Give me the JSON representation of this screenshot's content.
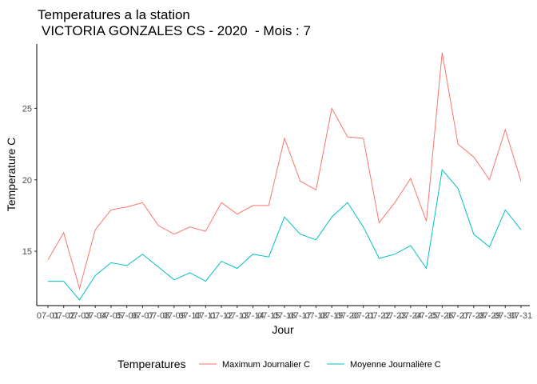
{
  "chart_data": {
    "type": "line",
    "title": "Temperatures a la station",
    "subtitle": "VICTORIA GONZALES CS - 2020  - Mois : 7",
    "xlabel": "Jour",
    "ylabel": "Temperature C",
    "x": [
      "07-01",
      "07-02",
      "07-03",
      "07-04",
      "07-05",
      "07-06",
      "07-07",
      "07-08",
      "07-09",
      "07-10",
      "07-11",
      "07-12",
      "07-13",
      "07-14",
      "07-15",
      "07-16",
      "07-17",
      "07-18",
      "07-19",
      "07-20",
      "07-21",
      "07-22",
      "07-23",
      "07-24",
      "07-25",
      "07-26",
      "07-27",
      "07-28",
      "07-29",
      "07-30",
      "07-31"
    ],
    "x_tick_labels": [
      "07-01",
      "07-02",
      "07-03",
      "07-04",
      "07-05",
      "07-06",
      "07-07",
      "07-08",
      "07-09",
      "07-10",
      "07-11",
      "07-12",
      "07-13",
      "07-14",
      "07-15",
      "07-16",
      "07-17",
      "07-18",
      "07-19",
      "07-20",
      "07-21",
      "07-22",
      "07-23",
      "07-24",
      "07-25",
      "07-26",
      "07-27",
      "07-28",
      "07-29",
      "07-30",
      "07-31"
    ],
    "y_ticks": [
      15,
      20,
      25
    ],
    "ylim": [
      11.2,
      29.5
    ],
    "grid": false,
    "legend_position": "bottom",
    "legend_title": "Temperatures",
    "series": [
      {
        "name": "Maximum Journalier C",
        "color": "#F8766D",
        "values": [
          14.4,
          16.3,
          12.4,
          16.5,
          17.9,
          18.1,
          18.4,
          16.8,
          16.2,
          16.7,
          16.4,
          18.4,
          17.6,
          18.2,
          18.2,
          22.9,
          19.9,
          19.3,
          25.0,
          23.0,
          22.9,
          17.0,
          18.4,
          20.1,
          17.1,
          28.9,
          22.5,
          21.6,
          20.0,
          23.5,
          19.9
        ]
      },
      {
        "name": "Moyenne Journalière C",
        "color": "#00BFC4",
        "values": [
          12.9,
          12.9,
          11.6,
          13.3,
          14.2,
          14.0,
          14.8,
          13.9,
          13.0,
          13.5,
          12.9,
          14.3,
          13.8,
          14.8,
          14.6,
          17.4,
          16.2,
          15.8,
          17.4,
          18.4,
          16.7,
          14.5,
          14.8,
          15.4,
          13.8,
          20.7,
          19.4,
          16.2,
          15.3,
          17.9,
          16.5
        ]
      }
    ]
  }
}
